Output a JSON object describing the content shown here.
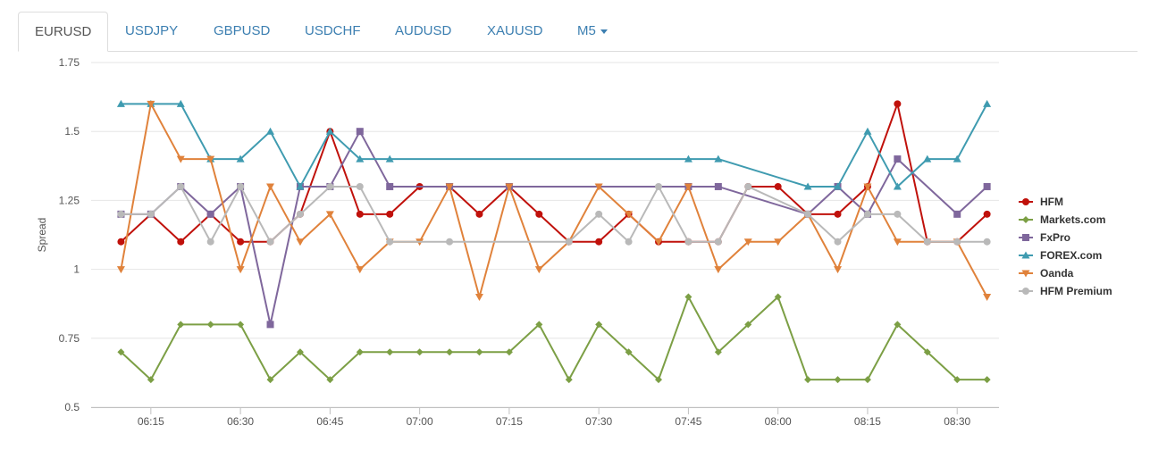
{
  "tabs": [
    {
      "label": "EURUSD",
      "active": true
    },
    {
      "label": "USDJPY",
      "active": false
    },
    {
      "label": "GBPUSD",
      "active": false
    },
    {
      "label": "USDCHF",
      "active": false
    },
    {
      "label": "AUDUSD",
      "active": false
    },
    {
      "label": "XAUUSD",
      "active": false
    }
  ],
  "timeframe": {
    "label": "M5",
    "icon": "caret-down-icon"
  },
  "colors": {
    "tab_link": "#3c7fb1",
    "grid": "#e6e6e6"
  },
  "chart_data": {
    "type": "line",
    "ylabel": "Spread",
    "xlabel": "",
    "ylim": [
      0.5,
      1.75
    ],
    "yticks": [
      "0.5",
      "0.75",
      "1",
      "1.25",
      "1.5",
      "1.75"
    ],
    "xticks": [
      "06:15",
      "06:30",
      "06:45",
      "07:00",
      "07:15",
      "07:30",
      "07:45",
      "08:00",
      "08:15",
      "08:30"
    ],
    "grid": "horizontal",
    "legend_position": "right",
    "series": [
      {
        "name": "HFM",
        "color": "#c0110b",
        "marker": "circle",
        "x": [
          "06:10",
          "06:15",
          "06:20",
          "06:25",
          "06:30",
          "06:35",
          "06:40",
          "06:45",
          "06:50",
          "06:55",
          "07:00",
          "07:05",
          "07:10",
          "07:15",
          "07:20",
          "07:25",
          "07:30",
          "07:35",
          "07:40",
          "07:45",
          "07:50",
          "07:55",
          "08:00",
          "08:05",
          "08:10",
          "08:15",
          "08:20",
          "08:25",
          "08:30",
          "08:35"
        ],
        "values": [
          1.1,
          1.2,
          1.1,
          1.2,
          1.1,
          1.1,
          1.2,
          1.5,
          1.2,
          1.2,
          1.3,
          1.3,
          1.2,
          1.3,
          1.2,
          1.1,
          1.1,
          1.2,
          1.1,
          1.1,
          1.1,
          1.3,
          1.3,
          1.2,
          1.2,
          1.3,
          1.6,
          1.1,
          1.1,
          1.2
        ]
      },
      {
        "name": "Markets.com",
        "color": "#7c9f45",
        "marker": "diamond",
        "x": [
          "06:10",
          "06:15",
          "06:20",
          "06:25",
          "06:30",
          "06:35",
          "06:40",
          "06:45",
          "06:50",
          "06:55",
          "07:00",
          "07:05",
          "07:10",
          "07:15",
          "07:20",
          "07:25",
          "07:30",
          "07:35",
          "07:40",
          "07:45",
          "07:50",
          "07:55",
          "08:00",
          "08:05",
          "08:10",
          "08:15",
          "08:20",
          "08:25",
          "08:30",
          "08:35"
        ],
        "values": [
          0.7,
          0.6,
          0.8,
          0.8,
          0.8,
          0.6,
          0.7,
          0.6,
          0.7,
          0.7,
          0.7,
          0.7,
          0.7,
          0.7,
          0.8,
          0.6,
          0.8,
          0.7,
          0.6,
          0.9,
          0.7,
          0.8,
          0.9,
          0.6,
          0.6,
          0.6,
          0.8,
          0.7,
          0.6,
          0.6
        ]
      },
      {
        "name": "FxPro",
        "color": "#7f679c",
        "marker": "square",
        "x": [
          "06:10",
          "06:15",
          "06:20",
          "06:25",
          "06:30",
          "06:35",
          "06:40",
          "06:45",
          "06:50",
          "06:55",
          "07:05",
          "07:15",
          "07:45",
          "07:50",
          "08:05",
          "08:10",
          "08:15",
          "08:20",
          "08:30",
          "08:35"
        ],
        "values": [
          1.2,
          1.2,
          1.3,
          1.2,
          1.3,
          0.8,
          1.3,
          1.3,
          1.5,
          1.3,
          1.3,
          1.3,
          1.3,
          1.3,
          1.2,
          1.3,
          1.2,
          1.4,
          1.2,
          1.3
        ]
      },
      {
        "name": "FOREX.com",
        "color": "#3f9bb0",
        "marker": "triangle",
        "x": [
          "06:10",
          "06:15",
          "06:20",
          "06:25",
          "06:30",
          "06:35",
          "06:40",
          "06:45",
          "06:50",
          "06:55",
          "07:45",
          "07:50",
          "08:05",
          "08:10",
          "08:15",
          "08:20",
          "08:25",
          "08:30",
          "08:35"
        ],
        "values": [
          1.6,
          1.6,
          1.6,
          1.4,
          1.4,
          1.5,
          1.3,
          1.5,
          1.4,
          1.4,
          1.4,
          1.4,
          1.3,
          1.3,
          1.5,
          1.3,
          1.4,
          1.4,
          1.6
        ]
      },
      {
        "name": "Oanda",
        "color": "#e0823b",
        "marker": "triangle-down",
        "x": [
          "06:10",
          "06:15",
          "06:20",
          "06:25",
          "06:30",
          "06:35",
          "06:40",
          "06:45",
          "06:50",
          "06:55",
          "07:00",
          "07:05",
          "07:10",
          "07:15",
          "07:20",
          "07:25",
          "07:30",
          "07:35",
          "07:40",
          "07:45",
          "07:50",
          "07:55",
          "08:00",
          "08:05",
          "08:10",
          "08:15",
          "08:20",
          "08:25",
          "08:30",
          "08:35"
        ],
        "values": [
          1.0,
          1.6,
          1.4,
          1.4,
          1.0,
          1.3,
          1.1,
          1.2,
          1.0,
          1.1,
          1.1,
          1.3,
          0.9,
          1.3,
          1.0,
          1.1,
          1.3,
          1.2,
          1.1,
          1.3,
          1.0,
          1.1,
          1.1,
          1.2,
          1.0,
          1.3,
          1.1,
          1.1,
          1.1,
          0.9
        ]
      },
      {
        "name": "HFM Premium",
        "color": "#b9b9b9",
        "marker": "circle",
        "x": [
          "06:10",
          "06:15",
          "06:20",
          "06:25",
          "06:30",
          "06:35",
          "06:40",
          "06:45",
          "06:50",
          "06:55",
          "07:05",
          "07:25",
          "07:30",
          "07:35",
          "07:40",
          "07:45",
          "07:50",
          "07:55",
          "08:05",
          "08:10",
          "08:15",
          "08:20",
          "08:25",
          "08:30",
          "08:35"
        ],
        "values": [
          1.2,
          1.2,
          1.3,
          1.1,
          1.3,
          1.1,
          1.2,
          1.3,
          1.3,
          1.1,
          1.1,
          1.1,
          1.2,
          1.1,
          1.3,
          1.1,
          1.1,
          1.3,
          1.2,
          1.1,
          1.2,
          1.2,
          1.1,
          1.1,
          1.1
        ]
      }
    ]
  }
}
